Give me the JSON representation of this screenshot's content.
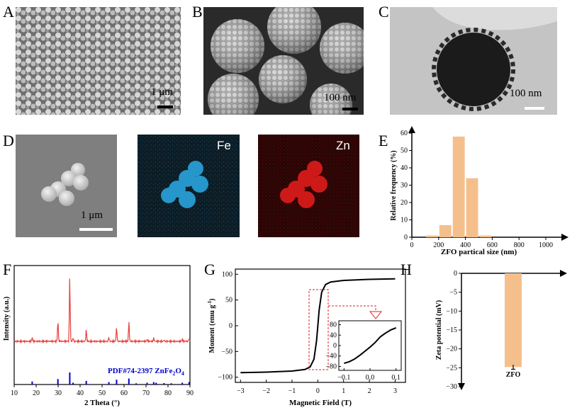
{
  "panels": {
    "A": {
      "letter": "A",
      "scale": "1 μm"
    },
    "B": {
      "letter": "B",
      "scale": "100 nm"
    },
    "C": {
      "letter": "C",
      "scale": "100 nm"
    },
    "D": {
      "letter": "D",
      "scale": "1 μm",
      "fe": "Fe",
      "zn": "Zn"
    },
    "E": {
      "letter": "E"
    },
    "F": {
      "letter": "F"
    },
    "G": {
      "letter": "G"
    },
    "H": {
      "letter": "H"
    }
  },
  "colors": {
    "accent": "#f5bf8c",
    "xrd": "#e8413c",
    "pdf": "#0000cc",
    "fe_map": "#2a9fd6",
    "zn_map": "#d42020"
  },
  "chart_data": [
    {
      "panel": "E",
      "type": "bar",
      "xlabel": "ZFO partical size (nm)",
      "ylabel": "Relative frequency (%)",
      "xlim": [
        0,
        1000
      ],
      "ylim": [
        0,
        60
      ],
      "xticks": [
        "0",
        "200",
        "400",
        "600",
        "800",
        "1000"
      ],
      "yticks": [
        "0",
        "10",
        "20",
        "30",
        "40",
        "50",
        "60"
      ],
      "bins": [
        {
          "x0": 100,
          "x1": 200,
          "value": 1
        },
        {
          "x0": 200,
          "x1": 300,
          "value": 7
        },
        {
          "x0": 300,
          "x1": 400,
          "value": 58
        },
        {
          "x0": 400,
          "x1": 500,
          "value": 34
        },
        {
          "x0": 500,
          "x1": 600,
          "value": 1
        }
      ]
    },
    {
      "panel": "F",
      "type": "line",
      "xlabel": "2 Theta (°)",
      "ylabel": "Intensity (a.u.)",
      "xlim": [
        10,
        90
      ],
      "xticks": [
        "10",
        "20",
        "30",
        "40",
        "50",
        "60",
        "70",
        "80",
        "90"
      ],
      "reference": "PDF#74-2397 ZnFe",
      "reference_sub1": "2",
      "reference_mid": "O",
      "reference_sub2": "4",
      "peaks": [
        {
          "x": 18.2,
          "h": 0.06
        },
        {
          "x": 29.9,
          "h": 0.32
        },
        {
          "x": 35.3,
          "h": 1.0
        },
        {
          "x": 36.8,
          "h": 0.05
        },
        {
          "x": 42.8,
          "h": 0.18
        },
        {
          "x": 53.1,
          "h": 0.06
        },
        {
          "x": 56.6,
          "h": 0.22
        },
        {
          "x": 62.2,
          "h": 0.3
        },
        {
          "x": 70.5,
          "h": 0.03
        },
        {
          "x": 73.5,
          "h": 0.05
        },
        {
          "x": 78.2,
          "h": 0.02
        },
        {
          "x": 86.5,
          "h": 0.03
        },
        {
          "x": 89.6,
          "h": 0.04
        }
      ],
      "ref_lines": [
        {
          "x": 18.2,
          "h": 0.25
        },
        {
          "x": 29.9,
          "h": 0.45
        },
        {
          "x": 35.3,
          "h": 1.0
        },
        {
          "x": 36.8,
          "h": 0.15
        },
        {
          "x": 42.8,
          "h": 0.3
        },
        {
          "x": 53.1,
          "h": 0.2
        },
        {
          "x": 56.6,
          "h": 0.4
        },
        {
          "x": 62.2,
          "h": 0.5
        },
        {
          "x": 65.5,
          "h": 0.1
        },
        {
          "x": 70.5,
          "h": 0.15
        },
        {
          "x": 73.5,
          "h": 0.2
        },
        {
          "x": 74.6,
          "h": 0.15
        },
        {
          "x": 78.2,
          "h": 0.12
        },
        {
          "x": 81.5,
          "h": 0.1
        },
        {
          "x": 86.5,
          "h": 0.15
        },
        {
          "x": 89.6,
          "h": 0.2
        }
      ]
    },
    {
      "panel": "G",
      "type": "line",
      "xlabel": "Magnetic Field (T)",
      "ylabel": "Moment (emu g",
      "ylabel_sup": "-1",
      "ylabel_end": ")",
      "xlim": [
        -3.2,
        3.4
      ],
      "ylim": [
        -110,
        110
      ],
      "xticks": [
        "−3",
        "−2",
        "−1",
        "0",
        "1",
        "2",
        "3"
      ],
      "xtick_values": [
        -3,
        -2,
        -1,
        0,
        1,
        2,
        3
      ],
      "yticks": [
        "−100",
        "−50",
        "0",
        "50",
        "100"
      ],
      "ytick_values": [
        -100,
        -50,
        0,
        50,
        100
      ],
      "curve": [
        [
          -3,
          -91
        ],
        [
          -2,
          -90
        ],
        [
          -1,
          -88
        ],
        [
          -0.5,
          -85
        ],
        [
          -0.3,
          -80
        ],
        [
          -0.15,
          -65
        ],
        [
          -0.05,
          -30
        ],
        [
          0,
          0
        ],
        [
          0.05,
          30
        ],
        [
          0.15,
          65
        ],
        [
          0.3,
          80
        ],
        [
          0.5,
          85
        ],
        [
          1,
          88
        ],
        [
          2,
          90
        ],
        [
          3,
          91
        ]
      ],
      "inset": {
        "xlim": [
          -0.12,
          0.12
        ],
        "ylim": [
          -95,
          95
        ],
        "xticks": [
          "−0.1",
          "0.0",
          "0.1"
        ],
        "xtick_values": [
          -0.1,
          0.0,
          0.1
        ],
        "yticks": [
          "−80",
          "−40",
          "0",
          "40",
          "80"
        ],
        "ytick_values": [
          -80,
          -40,
          0,
          40,
          80
        ],
        "curve": [
          [
            -0.1,
            -68
          ],
          [
            -0.08,
            -62
          ],
          [
            -0.06,
            -52
          ],
          [
            -0.04,
            -38
          ],
          [
            -0.02,
            -22
          ],
          [
            0,
            -6
          ],
          [
            0.02,
            12
          ],
          [
            0.04,
            34
          ],
          [
            0.06,
            48
          ],
          [
            0.08,
            60
          ],
          [
            0.1,
            68
          ]
        ]
      }
    },
    {
      "panel": "H",
      "type": "bar",
      "ylabel": "Zeta potential (mV)",
      "categories": [
        "ZFO"
      ],
      "values": [
        -24.8
      ],
      "error": 0.6,
      "ylim": [
        -30,
        0
      ],
      "yticks": [
        "0",
        "−5",
        "−10",
        "−15",
        "−20",
        "−25",
        "−30"
      ],
      "ytick_values": [
        0,
        -5,
        -10,
        -15,
        -20,
        -25,
        -30
      ]
    }
  ]
}
